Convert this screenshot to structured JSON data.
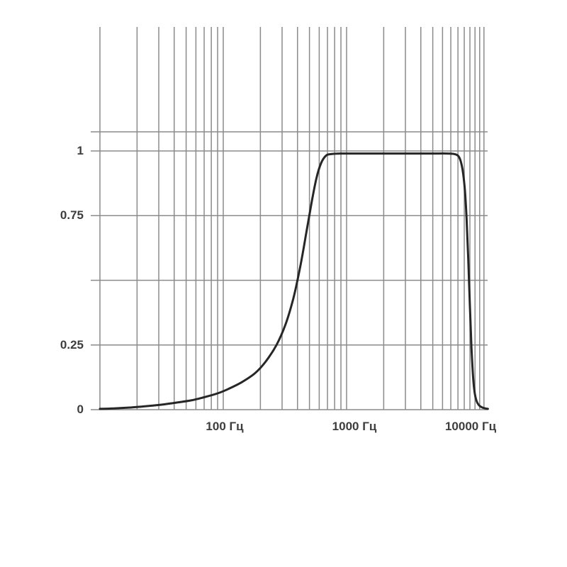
{
  "chart_data": {
    "type": "line",
    "title": "",
    "description": "Band-pass filter frequency response curve on a logarithmic frequency grid",
    "x_axis": {
      "scale": "log",
      "unit": "Гц",
      "min": 10,
      "max": 14000,
      "tick_values": [
        100,
        1000,
        10000
      ],
      "tick_labels": [
        "100 Гц",
        "1000 Гц",
        "10000 Гц"
      ],
      "gridline_frequencies": [
        10,
        20,
        30,
        40,
        50,
        60,
        70,
        80,
        90,
        100,
        200,
        300,
        400,
        500,
        600,
        700,
        800,
        900,
        1000,
        2000,
        3000,
        4000,
        5000,
        6000,
        7000,
        8000,
        9000,
        10000,
        11000,
        12000,
        13000
      ]
    },
    "y_axis": {
      "min": 0,
      "max": 1.074,
      "tick_values": [
        1,
        0.75,
        0.25,
        0
      ],
      "tick_labels": [
        "1",
        "0.75",
        "0.25",
        "0"
      ],
      "gridline_values": [
        0,
        0.25,
        0.5,
        0.75,
        1
      ]
    },
    "grid": true,
    "legend": "none",
    "series": [
      {
        "name": "frequency-response",
        "points": [
          [
            10,
            0.003
          ],
          [
            13,
            0.005
          ],
          [
            17,
            0.008
          ],
          [
            22,
            0.012
          ],
          [
            30,
            0.018
          ],
          [
            40,
            0.026
          ],
          [
            55,
            0.036
          ],
          [
            70,
            0.048
          ],
          [
            90,
            0.063
          ],
          [
            110,
            0.08
          ],
          [
            140,
            0.105
          ],
          [
            180,
            0.14
          ],
          [
            220,
            0.185
          ],
          [
            270,
            0.25
          ],
          [
            320,
            0.33
          ],
          [
            370,
            0.43
          ],
          [
            420,
            0.55
          ],
          [
            470,
            0.68
          ],
          [
            520,
            0.8
          ],
          [
            570,
            0.895
          ],
          [
            620,
            0.952
          ],
          [
            680,
            0.982
          ],
          [
            750,
            0.988
          ],
          [
            900,
            0.99
          ],
          [
            1500,
            0.99
          ],
          [
            3000,
            0.99
          ],
          [
            5000,
            0.99
          ],
          [
            6500,
            0.99
          ],
          [
            7500,
            0.988
          ],
          [
            8200,
            0.975
          ],
          [
            8700,
            0.93
          ],
          [
            9100,
            0.85
          ],
          [
            9400,
            0.74
          ],
          [
            9700,
            0.58
          ],
          [
            10000,
            0.4
          ],
          [
            10300,
            0.24
          ],
          [
            10600,
            0.13
          ],
          [
            10900,
            0.07
          ],
          [
            11300,
            0.035
          ],
          [
            11800,
            0.018
          ],
          [
            12500,
            0.009
          ],
          [
            13300,
            0.005
          ],
          [
            14000,
            0.003
          ]
        ]
      }
    ],
    "colors": {
      "curve": "#262626",
      "grid": "#8b8b8b",
      "label": "#3d3d3d",
      "background": "#ffffff"
    }
  }
}
